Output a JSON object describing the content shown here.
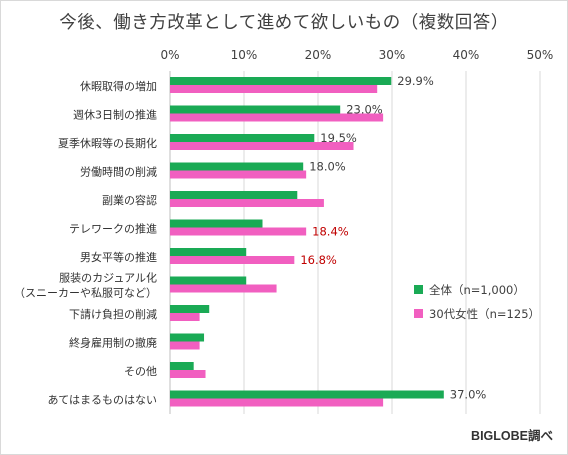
{
  "title": "今後、働き方改革として進めて欲しいもの（複数回答）",
  "credit": "BIGLOBE調べ",
  "colors": {
    "series1": "#1aaa55",
    "series2": "#f15fc0",
    "grid": "#d9d9d9",
    "label_default": "#404040",
    "label_highlight": "#c00000"
  },
  "chart_data": {
    "type": "bar",
    "orientation": "horizontal",
    "xlim": [
      0,
      50
    ],
    "x_ticks": [
      "0%",
      "10%",
      "20%",
      "30%",
      "40%",
      "50%"
    ],
    "grid": true,
    "legend_position": "right",
    "categories": [
      [
        "休暇取得の増加"
      ],
      [
        "週休3日制の推進"
      ],
      [
        "夏季休暇等の長期化"
      ],
      [
        "労働時間の削減"
      ],
      [
        "副業の容認"
      ],
      [
        "テレワークの推進"
      ],
      [
        "男女平等の推進"
      ],
      [
        "服装のカジュアル化",
        "（スニーカーや私服可など）"
      ],
      [
        "下請け負担の削減"
      ],
      [
        "終身雇用制の撤廃"
      ],
      [
        "その他"
      ],
      [
        "あてはまるものはない"
      ]
    ],
    "series": [
      {
        "name": "全体（n=1,000）",
        "values": [
          29.9,
          23.0,
          19.5,
          18.0,
          17.2,
          12.5,
          10.3,
          10.3,
          5.3,
          4.6,
          3.2,
          37.0
        ]
      },
      {
        "name": "30代女性（n=125）",
        "values": [
          28.0,
          28.8,
          24.8,
          18.4,
          20.8,
          18.4,
          16.8,
          14.4,
          4.0,
          4.0,
          4.8,
          28.8
        ]
      }
    ],
    "data_labels": [
      {
        "row": 0,
        "series": 0,
        "text": "29.9%",
        "highlight": false
      },
      {
        "row": 1,
        "series": 0,
        "text": "23.0%",
        "highlight": false
      },
      {
        "row": 2,
        "series": 0,
        "text": "19.5%",
        "highlight": false
      },
      {
        "row": 3,
        "series": 0,
        "text": "18.0%",
        "highlight": false
      },
      {
        "row": 5,
        "series": 1,
        "text": "18.4%",
        "highlight": true
      },
      {
        "row": 6,
        "series": 1,
        "text": "16.8%",
        "highlight": true
      },
      {
        "row": 11,
        "series": 0,
        "text": "37.0%",
        "highlight": false
      }
    ]
  }
}
